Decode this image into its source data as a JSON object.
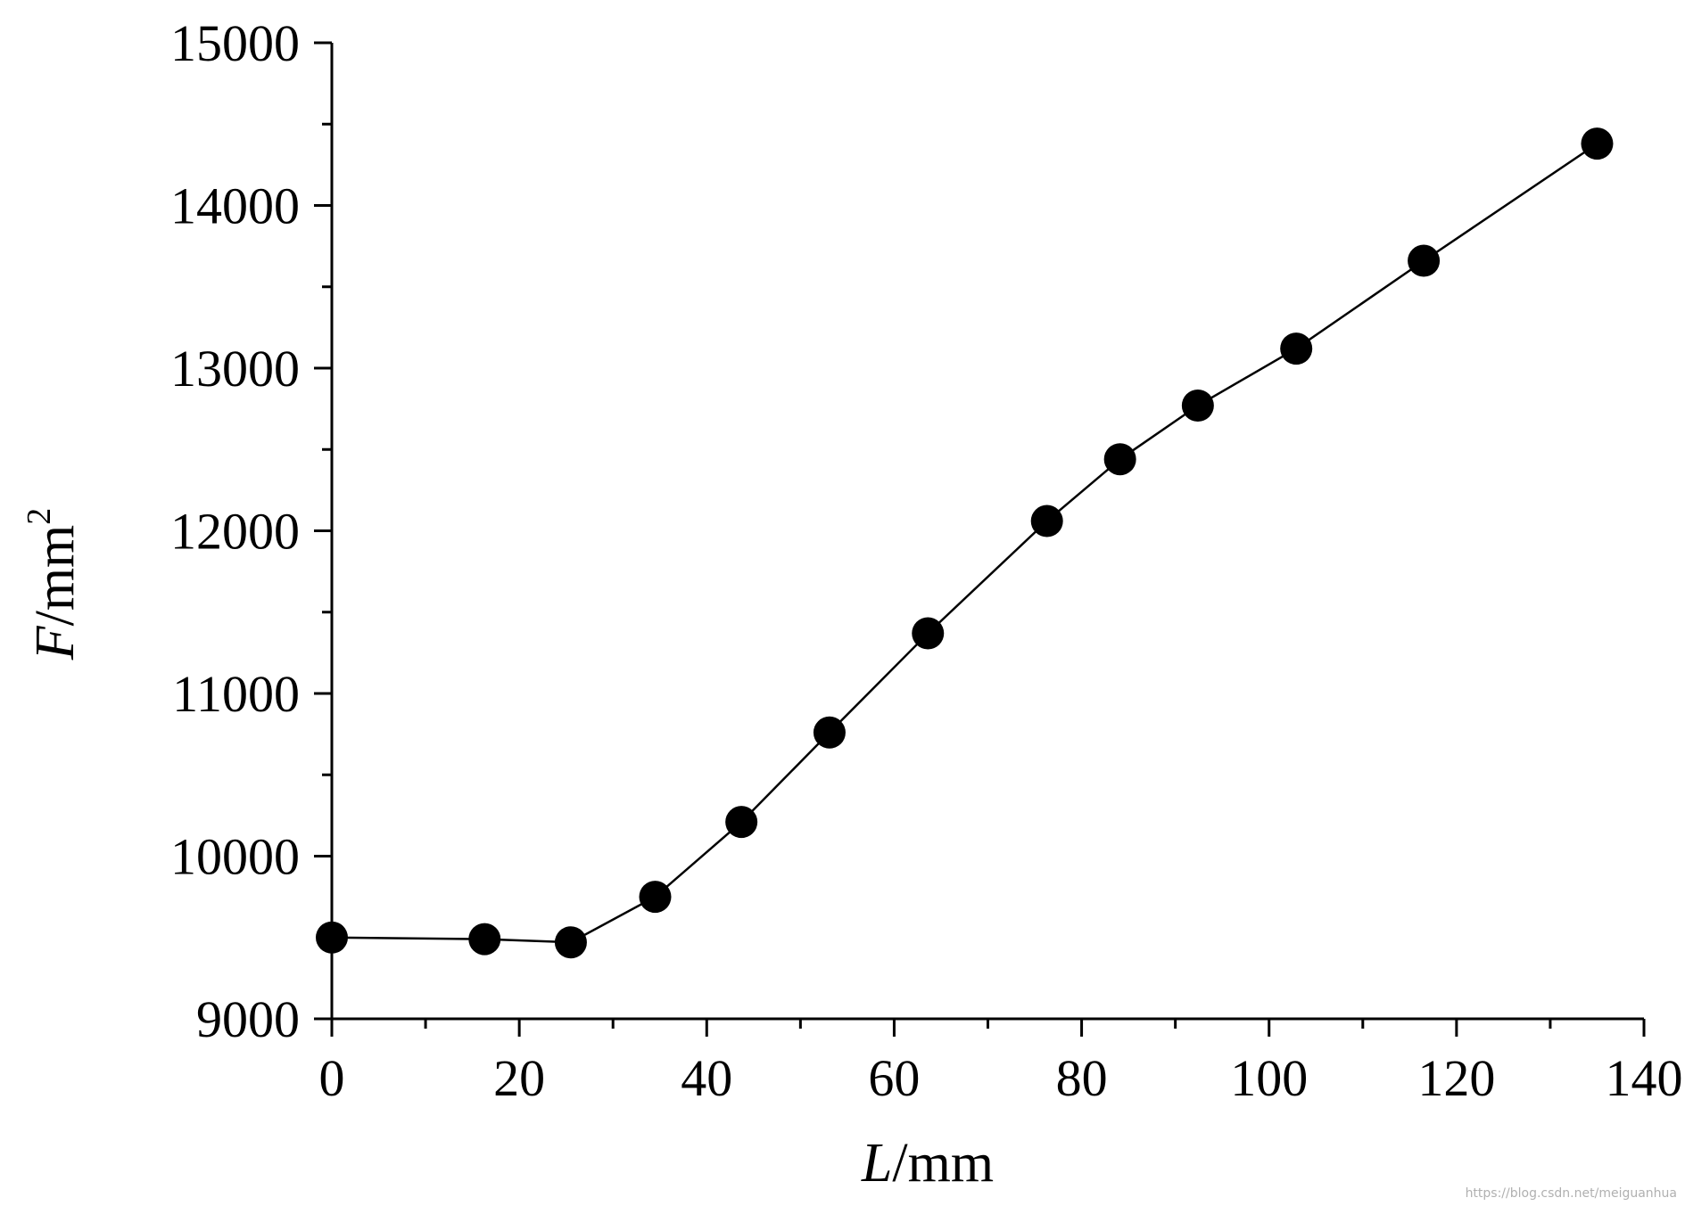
{
  "chart_data": {
    "type": "line",
    "markers": "filled-circle",
    "title": "",
    "xlabel_main": "L",
    "xlabel_unit": "/mm",
    "ylabel_main": "F",
    "ylabel_unit": "/mm",
    "ylabel_exponent": "2",
    "xlim": [
      0,
      140
    ],
    "ylim": [
      9000,
      15000
    ],
    "x_ticks": [
      "0",
      "20",
      "40",
      "60",
      "80",
      "100",
      "120",
      "140"
    ],
    "y_ticks": [
      "9000",
      "10000",
      "11000",
      "12000",
      "13000",
      "14000",
      "15000"
    ],
    "grid": false,
    "series": [
      {
        "x": [
          0,
          16.3,
          25.5,
          34.5,
          43.7,
          53.1,
          63.6,
          76.3,
          84.1,
          92.4,
          102.9,
          116.5,
          135.0
        ],
        "y": [
          9500,
          9490,
          9470,
          9750,
          10210,
          10760,
          11370,
          12060,
          12440,
          12770,
          13120,
          13660,
          14380
        ]
      }
    ],
    "line_color": "#000000",
    "marker_color": "#000000"
  },
  "watermark": "https://blog.csdn.net/meiguanhua"
}
